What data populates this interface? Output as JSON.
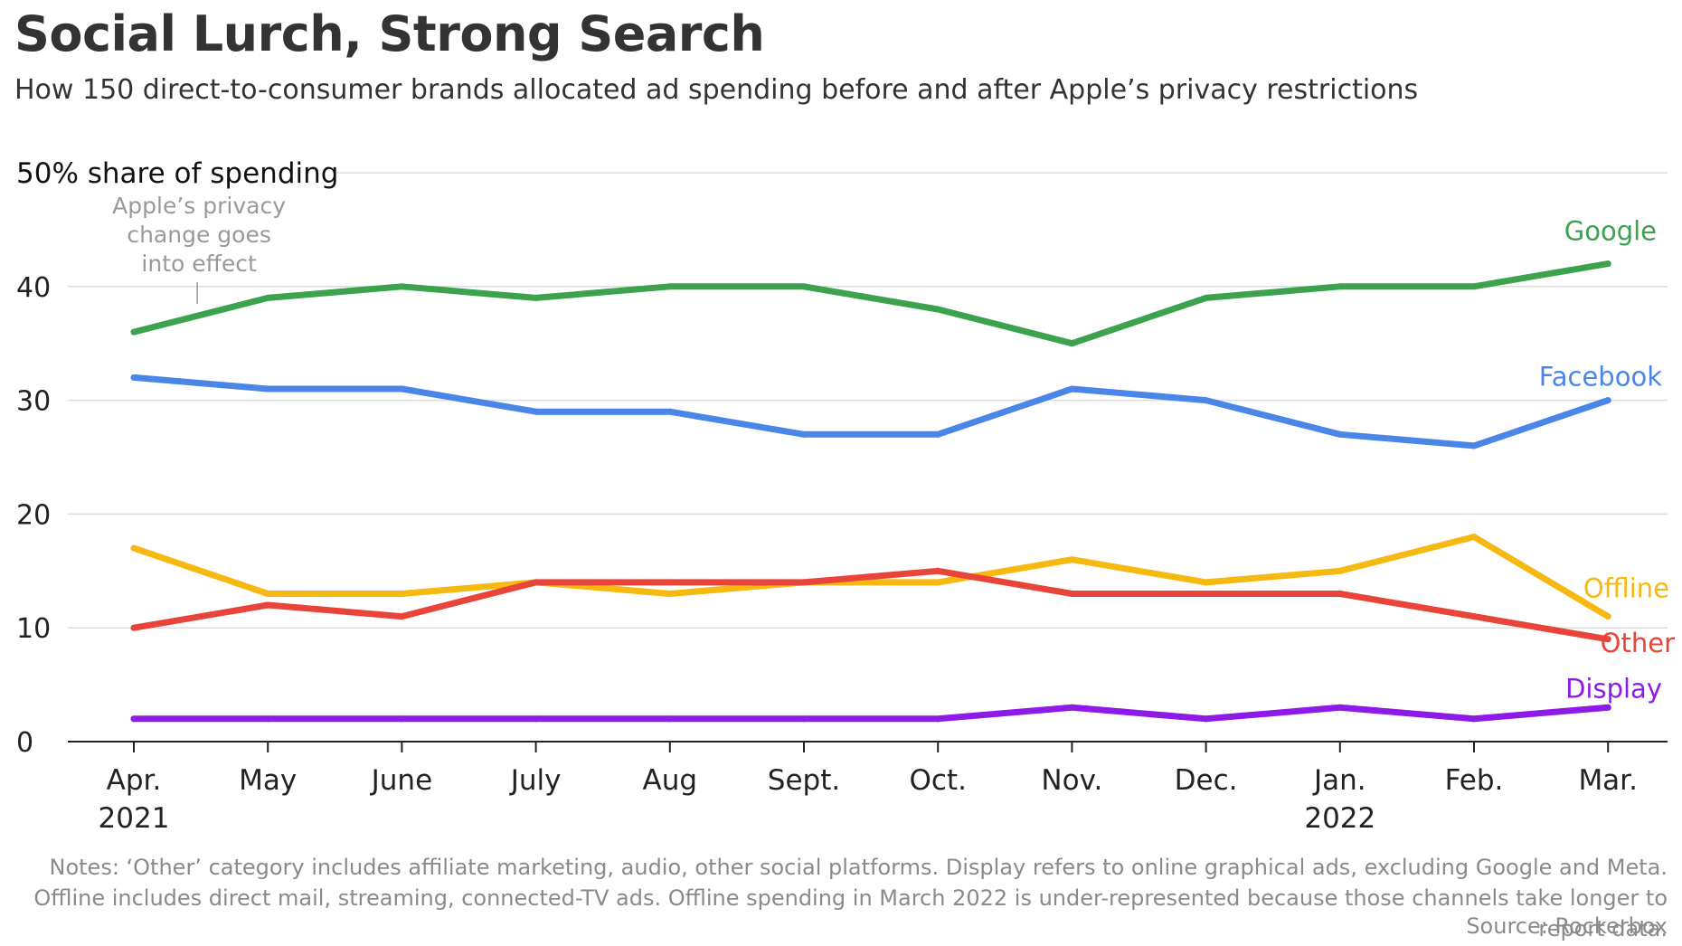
{
  "title": "Social Lurch, Strong Search",
  "subtitle": "How 150 direct-to-consumer brands allocated ad spending before and after Apple’s privacy restrictions",
  "notes": "Notes: ‘Other’ category includes affiliate marketing, audio, other social platforms. Display refers to online graphical ads, excluding Google and Meta. Offline includes direct mail, streaming, connected-TV ads. Offline spending in March 2022 is under-represented because those channels take longer to report data.",
  "source": "Source: Rockerbox",
  "colors": {
    "Google": "#3ca24e",
    "Facebook": "#4a86e8",
    "Offline": "#f6b911",
    "Other": "#e8443a",
    "Display": "#8e1ae8",
    "gridline": "#dddddd",
    "axis": "#222222",
    "annotation": "#999999"
  },
  "chart_data": {
    "type": "line",
    "ylabel": "50% share of spending",
    "ylim": [
      0,
      50
    ],
    "yticks": [
      0,
      10,
      20,
      30,
      40,
      50
    ],
    "ytick_labels": [
      "0",
      "10",
      "20",
      "30",
      "40",
      ""
    ],
    "grid": true,
    "legend": "direct labels at line ends",
    "x": [
      "Apr. 2021",
      "May",
      "June",
      "July",
      "Aug",
      "Sept.",
      "Oct.",
      "Nov.",
      "Dec.",
      "Jan. 2022",
      "Feb.",
      "Mar."
    ],
    "x_tick_labels": [
      [
        "Apr.",
        "2021"
      ],
      [
        "May"
      ],
      [
        "June"
      ],
      [
        "July"
      ],
      [
        "Aug"
      ],
      [
        "Sept."
      ],
      [
        "Oct."
      ],
      [
        "Nov."
      ],
      [
        "Dec."
      ],
      [
        "Jan.",
        "2022"
      ],
      [
        "Feb."
      ],
      [
        "Mar."
      ]
    ],
    "series": [
      {
        "name": "Google",
        "values": [
          36,
          39,
          40,
          39,
          40,
          40,
          38,
          35,
          39,
          40,
          40,
          42
        ]
      },
      {
        "name": "Facebook",
        "values": [
          32,
          31,
          31,
          29,
          29,
          27,
          27,
          31,
          30,
          27,
          26,
          30
        ]
      },
      {
        "name": "Offline",
        "values": [
          17,
          13,
          13,
          14,
          13,
          14,
          14,
          16,
          14,
          15,
          18,
          11
        ]
      },
      {
        "name": "Other",
        "values": [
          10,
          12,
          11,
          14,
          14,
          14,
          15,
          13,
          13,
          13,
          11,
          9
        ]
      },
      {
        "name": "Display",
        "values": [
          2,
          2,
          2,
          2,
          2,
          2,
          2,
          3,
          2,
          3,
          2,
          3
        ]
      }
    ],
    "annotations": [
      {
        "text": [
          "Apple’s privacy",
          "change goes",
          "into effect"
        ],
        "x_position": "between Apr. 2021 and May"
      }
    ]
  }
}
